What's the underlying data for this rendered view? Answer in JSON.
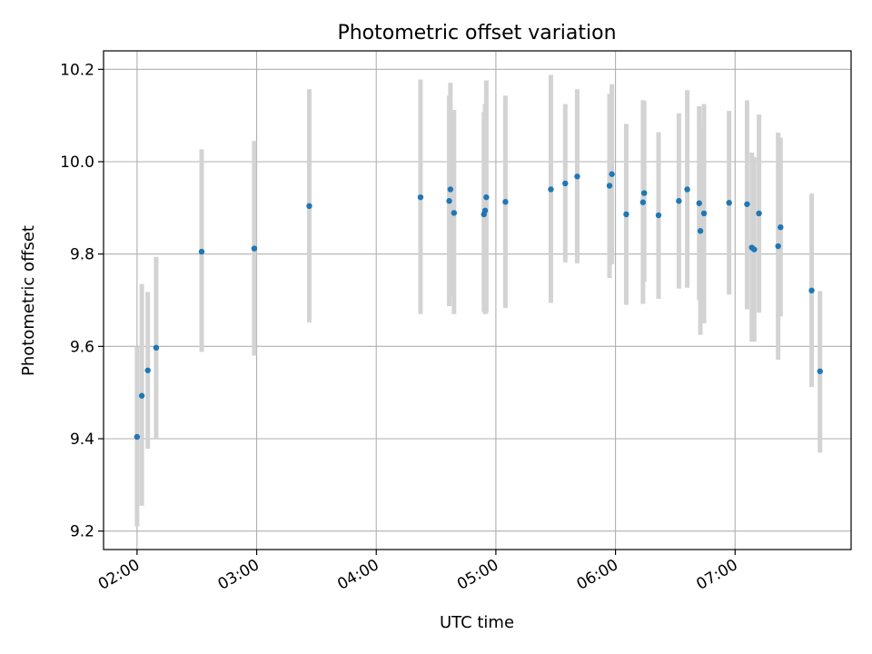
{
  "chart_data": {
    "type": "scatter",
    "title": "Photometric offset variation",
    "xlabel": "UTC time",
    "ylabel": "Photometric offset",
    "xlim_hours": [
      1.72,
      7.97
    ],
    "ylim": [
      9.16,
      10.24
    ],
    "x_ticks": [
      {
        "value": 2,
        "label": "02:00"
      },
      {
        "value": 3,
        "label": "03:00"
      },
      {
        "value": 4,
        "label": "04:00"
      },
      {
        "value": 5,
        "label": "05:00"
      },
      {
        "value": 6,
        "label": "06:00"
      },
      {
        "value": 7,
        "label": "07:00"
      }
    ],
    "y_ticks": [
      {
        "value": 9.2,
        "label": "9.2"
      },
      {
        "value": 9.4,
        "label": "9.4"
      },
      {
        "value": 9.6,
        "label": "9.6"
      },
      {
        "value": 9.8,
        "label": "9.8"
      },
      {
        "value": 10.0,
        "label": "10.0"
      },
      {
        "value": 10.2,
        "label": "10.2"
      }
    ],
    "grid": true,
    "x_units": "hours UTC",
    "colors": {
      "point": "#1f77b4",
      "errorbar": "#d3d3d3",
      "grid": "#b0b0b0",
      "axes": "#000000"
    },
    "points": [
      {
        "x": 2.0,
        "y": 9.404,
        "ylow": 9.21,
        "yhigh": 9.6
      },
      {
        "x": 2.04,
        "y": 9.493,
        "ylow": 9.255,
        "yhigh": 9.735
      },
      {
        "x": 2.09,
        "y": 9.548,
        "ylow": 9.378,
        "yhigh": 9.718
      },
      {
        "x": 2.16,
        "y": 9.597,
        "ylow": 9.4,
        "yhigh": 9.794
      },
      {
        "x": 2.54,
        "y": 9.805,
        "ylow": 9.588,
        "yhigh": 10.027
      },
      {
        "x": 2.98,
        "y": 9.812,
        "ylow": 9.58,
        "yhigh": 10.045
      },
      {
        "x": 3.44,
        "y": 9.904,
        "ylow": 9.652,
        "yhigh": 10.157
      },
      {
        "x": 4.37,
        "y": 9.923,
        "ylow": 9.67,
        "yhigh": 10.178
      },
      {
        "x": 4.61,
        "y": 9.915,
        "ylow": 9.687,
        "yhigh": 10.143
      },
      {
        "x": 4.62,
        "y": 9.94,
        "ylow": 9.708,
        "yhigh": 10.171
      },
      {
        "x": 4.65,
        "y": 9.889,
        "ylow": 9.67,
        "yhigh": 10.112
      },
      {
        "x": 4.9,
        "y": 9.886,
        "ylow": 9.675,
        "yhigh": 10.107
      },
      {
        "x": 4.91,
        "y": 9.894,
        "ylow": 9.67,
        "yhigh": 10.125
      },
      {
        "x": 4.92,
        "y": 9.923,
        "ylow": 9.672,
        "yhigh": 10.176
      },
      {
        "x": 5.08,
        "y": 9.913,
        "ylow": 9.683,
        "yhigh": 10.143
      },
      {
        "x": 5.46,
        "y": 9.94,
        "ylow": 9.694,
        "yhigh": 10.188
      },
      {
        "x": 5.58,
        "y": 9.953,
        "ylow": 9.782,
        "yhigh": 10.125
      },
      {
        "x": 5.68,
        "y": 9.968,
        "ylow": 9.78,
        "yhigh": 10.157
      },
      {
        "x": 5.95,
        "y": 9.948,
        "ylow": 9.748,
        "yhigh": 10.147
      },
      {
        "x": 5.97,
        "y": 9.973,
        "ylow": 9.778,
        "yhigh": 10.168
      },
      {
        "x": 6.09,
        "y": 9.886,
        "ylow": 9.69,
        "yhigh": 10.082
      },
      {
        "x": 6.23,
        "y": 9.912,
        "ylow": 9.692,
        "yhigh": 10.133
      },
      {
        "x": 6.24,
        "y": 9.932,
        "ylow": 9.74,
        "yhigh": 10.132
      },
      {
        "x": 6.36,
        "y": 9.884,
        "ylow": 9.703,
        "yhigh": 10.064
      },
      {
        "x": 6.53,
        "y": 9.915,
        "ylow": 9.725,
        "yhigh": 10.105
      },
      {
        "x": 6.6,
        "y": 9.94,
        "ylow": 9.727,
        "yhigh": 10.155
      },
      {
        "x": 6.7,
        "y": 9.91,
        "ylow": 9.7,
        "yhigh": 10.12
      },
      {
        "x": 6.71,
        "y": 9.85,
        "ylow": 9.625,
        "yhigh": 10.075
      },
      {
        "x": 6.74,
        "y": 9.888,
        "ylow": 9.65,
        "yhigh": 10.125
      },
      {
        "x": 6.95,
        "y": 9.911,
        "ylow": 9.712,
        "yhigh": 10.11
      },
      {
        "x": 7.1,
        "y": 9.908,
        "ylow": 9.68,
        "yhigh": 10.133
      },
      {
        "x": 7.14,
        "y": 9.814,
        "ylow": 9.61,
        "yhigh": 10.02
      },
      {
        "x": 7.16,
        "y": 9.81,
        "ylow": 9.61,
        "yhigh": 10.01
      },
      {
        "x": 7.2,
        "y": 9.888,
        "ylow": 9.673,
        "yhigh": 10.102
      },
      {
        "x": 7.36,
        "y": 9.817,
        "ylow": 9.571,
        "yhigh": 10.063
      },
      {
        "x": 7.38,
        "y": 9.858,
        "ylow": 9.665,
        "yhigh": 10.052
      },
      {
        "x": 7.64,
        "y": 9.721,
        "ylow": 9.512,
        "yhigh": 9.931
      },
      {
        "x": 7.71,
        "y": 9.546,
        "ylow": 9.37,
        "yhigh": 9.72
      }
    ]
  }
}
